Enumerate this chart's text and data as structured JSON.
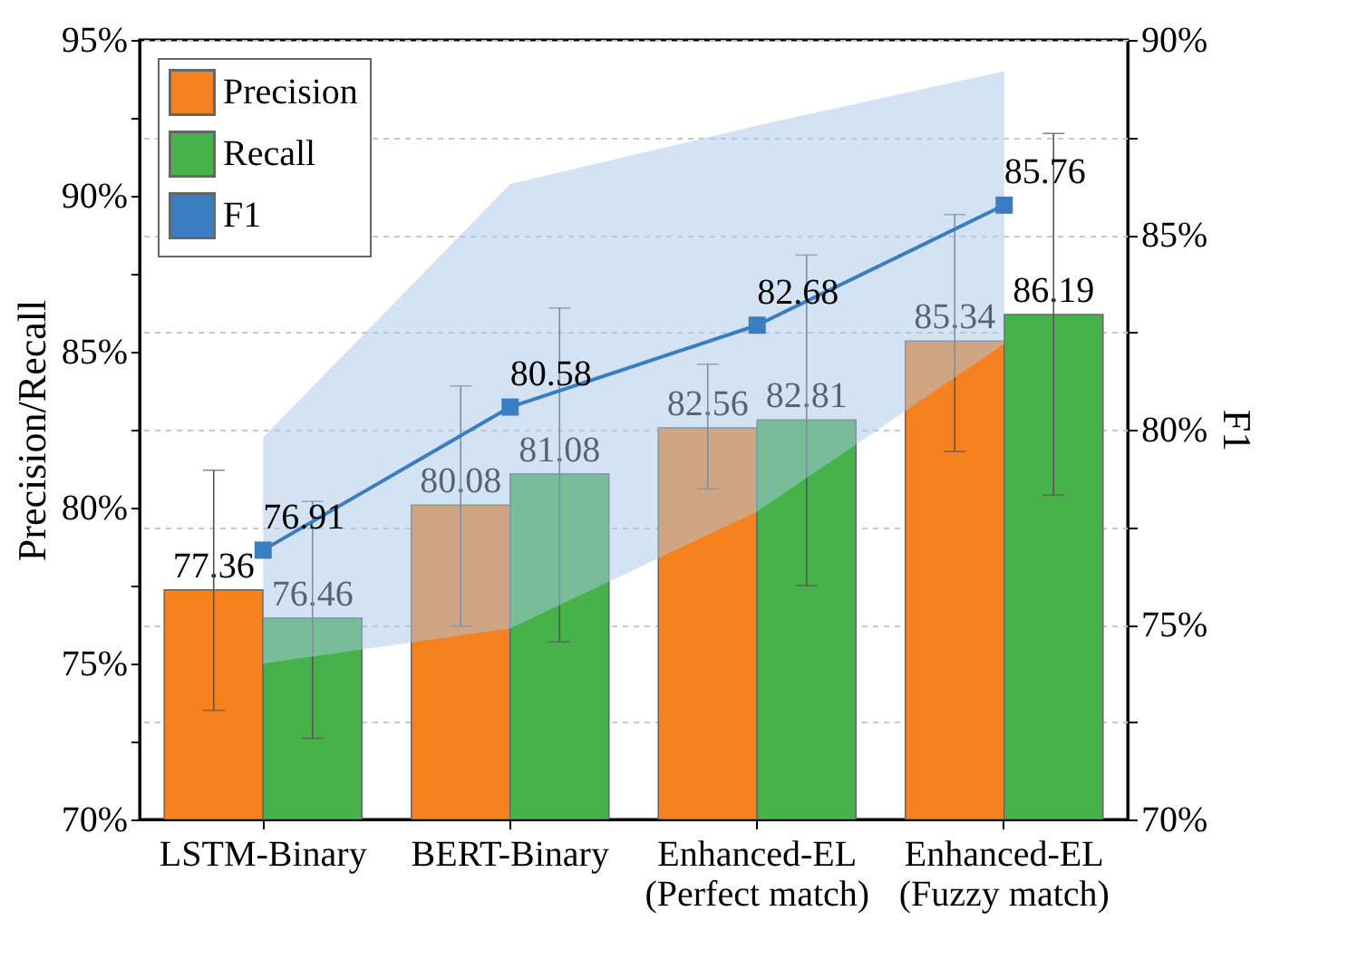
{
  "chart_data": {
    "type": "bar",
    "categories": [
      "LSTM-Binary",
      "BERT-Binary",
      "Enhanced-EL\n(Perfect match)",
      "Enhanced-EL\n(Fuzzy match)"
    ],
    "ylabel": "Precision/Recall",
    "y2label": "F1",
    "ylim": [
      70,
      95
    ],
    "yticks": [
      {
        "value": 70,
        "label": "70%"
      },
      {
        "value": 72.5,
        "label": null
      },
      {
        "value": 75,
        "label": "75%"
      },
      {
        "value": 77.5,
        "label": null
      },
      {
        "value": 80,
        "label": "80%"
      },
      {
        "value": 82.5,
        "label": null
      },
      {
        "value": 85,
        "label": "85%"
      },
      {
        "value": 87.5,
        "label": null
      },
      {
        "value": 90,
        "label": "90%"
      },
      {
        "value": 92.5,
        "label": null
      },
      {
        "value": 95,
        "label": "95%"
      }
    ],
    "y2lim": [
      70,
      90
    ],
    "y2ticks": [
      {
        "value": 70,
        "label": "70%"
      },
      {
        "value": 72.5,
        "label": null
      },
      {
        "value": 75,
        "label": "75%"
      },
      {
        "value": 77.5,
        "label": null
      },
      {
        "value": 80,
        "label": "80%"
      },
      {
        "value": 82.5,
        "label": null
      },
      {
        "value": 85,
        "label": "85%"
      },
      {
        "value": 87.5,
        "label": null
      },
      {
        "value": 90,
        "label": "90%"
      }
    ],
    "grid": true,
    "legend": "top left",
    "data_labels": true,
    "marker": "square",
    "line_style": "solid",
    "series": [
      {
        "name": "Precision",
        "color": "#f5821f",
        "values": [
          77.36,
          80.08,
          82.56,
          85.34
        ],
        "errors": [
          [
            73.5,
            81.2
          ],
          [
            76.2,
            83.9
          ],
          [
            80.6,
            84.6
          ],
          [
            81.8,
            89.4
          ]
        ]
      },
      {
        "name": "Recall",
        "color": "#47b24a",
        "values": [
          76.46,
          81.08,
          82.81,
          86.19
        ],
        "errors": [
          [
            72.6,
            80.2
          ],
          [
            75.7,
            86.4
          ],
          [
            77.5,
            88.1
          ],
          [
            80.4,
            92.0
          ]
        ]
      },
      {
        "name": "F1",
        "type": "line",
        "axis": "y2",
        "color": "#3a7dc0",
        "values": [
          76.91,
          80.58,
          82.68,
          85.76
        ],
        "lower": [
          74.0,
          74.9,
          77.9,
          82.2
        ],
        "upper": [
          79.8,
          86.3,
          87.8,
          89.2
        ]
      }
    ]
  }
}
